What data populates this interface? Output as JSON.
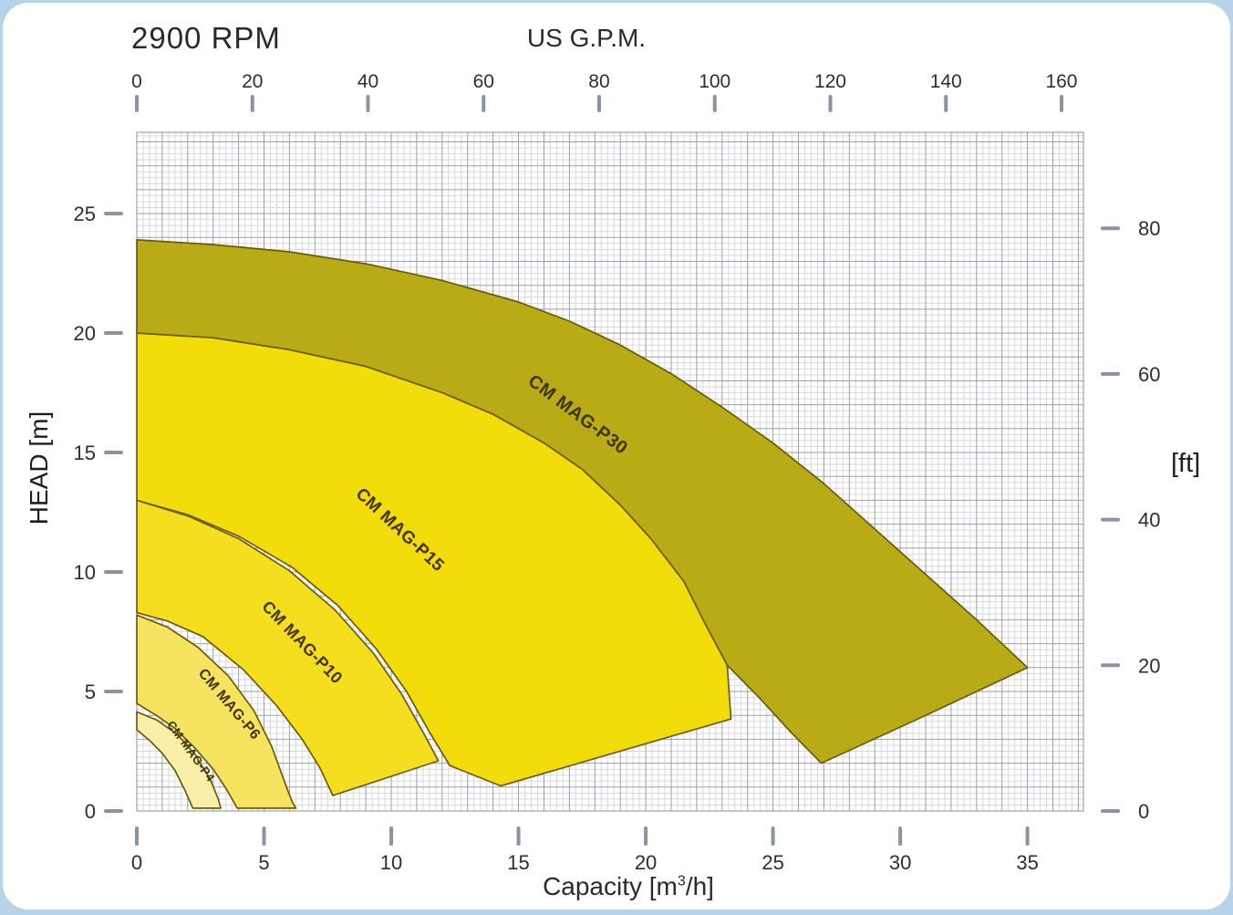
{
  "chart_data": {
    "type": "area",
    "title": "2900 RPM",
    "axes": {
      "top": {
        "label": "US G.P.M.",
        "ticks": [
          0,
          20,
          40,
          60,
          80,
          100,
          120,
          140,
          160
        ],
        "gpm_to_m3h": 0.22712
      },
      "bottom": {
        "label_prefix": "Capacity  [m",
        "label_sup": "3",
        "label_suffix": "/h]",
        "ticks": [
          0,
          5,
          10,
          15,
          20,
          25,
          30,
          35
        ],
        "range": [
          0,
          37.2
        ]
      },
      "left": {
        "label": "HEAD [m]",
        "ticks": [
          0,
          5,
          10,
          15,
          20,
          25
        ],
        "range": [
          0,
          28.4
        ]
      },
      "right": {
        "label": "[ft]",
        "ticks": [
          0,
          20,
          40,
          60,
          80
        ],
        "ft_to_m": 0.3048
      }
    },
    "grid": {
      "minor_step": 0.25,
      "major_step": 1,
      "minor_color": "#d8d8e0",
      "major_color": "#9aa0ac",
      "border_color": "#90909a"
    },
    "outline_color": "#6b5c08",
    "label_color": "#3f3500",
    "tick_color": "#8a94a0",
    "tick_label_color": "#2e2e2e",
    "series": [
      {
        "name": "CM MAG-P30",
        "fill": "#b8ab15",
        "points": [
          [
            0,
            23.9
          ],
          [
            3,
            23.7
          ],
          [
            6,
            23.4
          ],
          [
            9,
            22.9
          ],
          [
            12,
            22.2
          ],
          [
            15,
            21.3
          ],
          [
            17,
            20.5
          ],
          [
            19,
            19.5
          ],
          [
            21,
            18.3
          ],
          [
            23,
            16.9
          ],
          [
            25,
            15.4
          ],
          [
            27,
            13.7
          ],
          [
            29,
            11.8
          ],
          [
            31,
            9.9
          ],
          [
            33,
            8.0
          ],
          [
            35,
            6.0
          ],
          [
            30.9,
            3.95
          ],
          [
            26.9,
            2.0
          ],
          [
            25.7,
            3.3
          ],
          [
            24.5,
            4.7
          ],
          [
            23.2,
            6.1
          ],
          [
            22.3,
            7.9
          ],
          [
            21.5,
            9.6
          ],
          [
            20.2,
            11.4
          ],
          [
            19,
            12.8
          ],
          [
            17.5,
            14.3
          ],
          [
            16,
            15.4
          ],
          [
            14,
            16.6
          ],
          [
            12,
            17.5
          ],
          [
            9,
            18.6
          ],
          [
            6,
            19.3
          ],
          [
            3,
            19.8
          ],
          [
            0,
            20
          ]
        ],
        "label": {
          "x": 17.2,
          "y": 16.4,
          "angle": 37,
          "size": 20
        }
      },
      {
        "name": "CM MAG-P15",
        "fill": "#f2dc0a",
        "points": [
          [
            0,
            20
          ],
          [
            3,
            19.8
          ],
          [
            6,
            19.3
          ],
          [
            9,
            18.6
          ],
          [
            12,
            17.5
          ],
          [
            14,
            16.6
          ],
          [
            16,
            15.4
          ],
          [
            17.5,
            14.3
          ],
          [
            19,
            12.8
          ],
          [
            20.2,
            11.4
          ],
          [
            21.5,
            9.6
          ],
          [
            22.3,
            7.9
          ],
          [
            23.2,
            6.1
          ],
          [
            23.35,
            3.85
          ],
          [
            14.3,
            1.05
          ],
          [
            12.3,
            1.9
          ],
          [
            11.5,
            3.3
          ],
          [
            10.6,
            5.0
          ],
          [
            9.4,
            6.8
          ],
          [
            7.9,
            8.6
          ],
          [
            6.1,
            10.2
          ],
          [
            4,
            11.5
          ],
          [
            2,
            12.4
          ],
          [
            0,
            13
          ]
        ],
        "label": {
          "x": 10.2,
          "y": 11.6,
          "angle": 43,
          "size": 19
        }
      },
      {
        "name": "CM MAG-P10",
        "fill": "#f4de1e",
        "points": [
          [
            0,
            13
          ],
          [
            2,
            12.35
          ],
          [
            4,
            11.4
          ],
          [
            6,
            10.05
          ],
          [
            7.8,
            8.4
          ],
          [
            9.3,
            6.6
          ],
          [
            10.4,
            4.9
          ],
          [
            11.3,
            3.2
          ],
          [
            11.85,
            2.1
          ],
          [
            7.7,
            0.65
          ],
          [
            7.2,
            1.8
          ],
          [
            6.5,
            3.0
          ],
          [
            5.5,
            4.4
          ],
          [
            4.2,
            5.9
          ],
          [
            2.6,
            7.3
          ],
          [
            1.2,
            7.95
          ],
          [
            0,
            8.3
          ]
        ],
        "label": {
          "x": 6.35,
          "y": 6.9,
          "angle": 46,
          "size": 18
        }
      },
      {
        "name": "CM MAG-P6",
        "fill": "#f6e460",
        "points": [
          [
            0,
            8.2
          ],
          [
            1.2,
            7.7
          ],
          [
            2.4,
            6.85
          ],
          [
            3.6,
            5.65
          ],
          [
            4.6,
            4.2
          ],
          [
            5.3,
            2.7
          ],
          [
            5.85,
            1.1
          ],
          [
            6.1,
            0.4
          ],
          [
            6.25,
            0.12
          ],
          [
            3.95,
            0.12
          ],
          [
            3.5,
            0.95
          ],
          [
            3.0,
            1.75
          ],
          [
            2.3,
            2.62
          ],
          [
            1.5,
            3.45
          ],
          [
            0.8,
            3.98
          ],
          [
            0,
            4.5
          ]
        ],
        "label": {
          "x": 3.5,
          "y": 4.35,
          "angle": 50,
          "size": 16
        }
      },
      {
        "name": "CM MAG-P4",
        "fill": "#f9efa8",
        "points": [
          [
            0,
            4.15
          ],
          [
            0.8,
            3.8
          ],
          [
            1.6,
            3.2
          ],
          [
            2.3,
            2.35
          ],
          [
            2.9,
            1.3
          ],
          [
            3.2,
            0.5
          ],
          [
            3.3,
            0.12
          ],
          [
            2.2,
            0.12
          ],
          [
            1.9,
            0.85
          ],
          [
            1.5,
            1.7
          ],
          [
            1.0,
            2.42
          ],
          [
            0.5,
            2.95
          ],
          [
            0,
            3.4
          ]
        ],
        "label": {
          "x": 2.0,
          "y": 2.4,
          "angle": 54,
          "size": 13
        }
      }
    ]
  }
}
